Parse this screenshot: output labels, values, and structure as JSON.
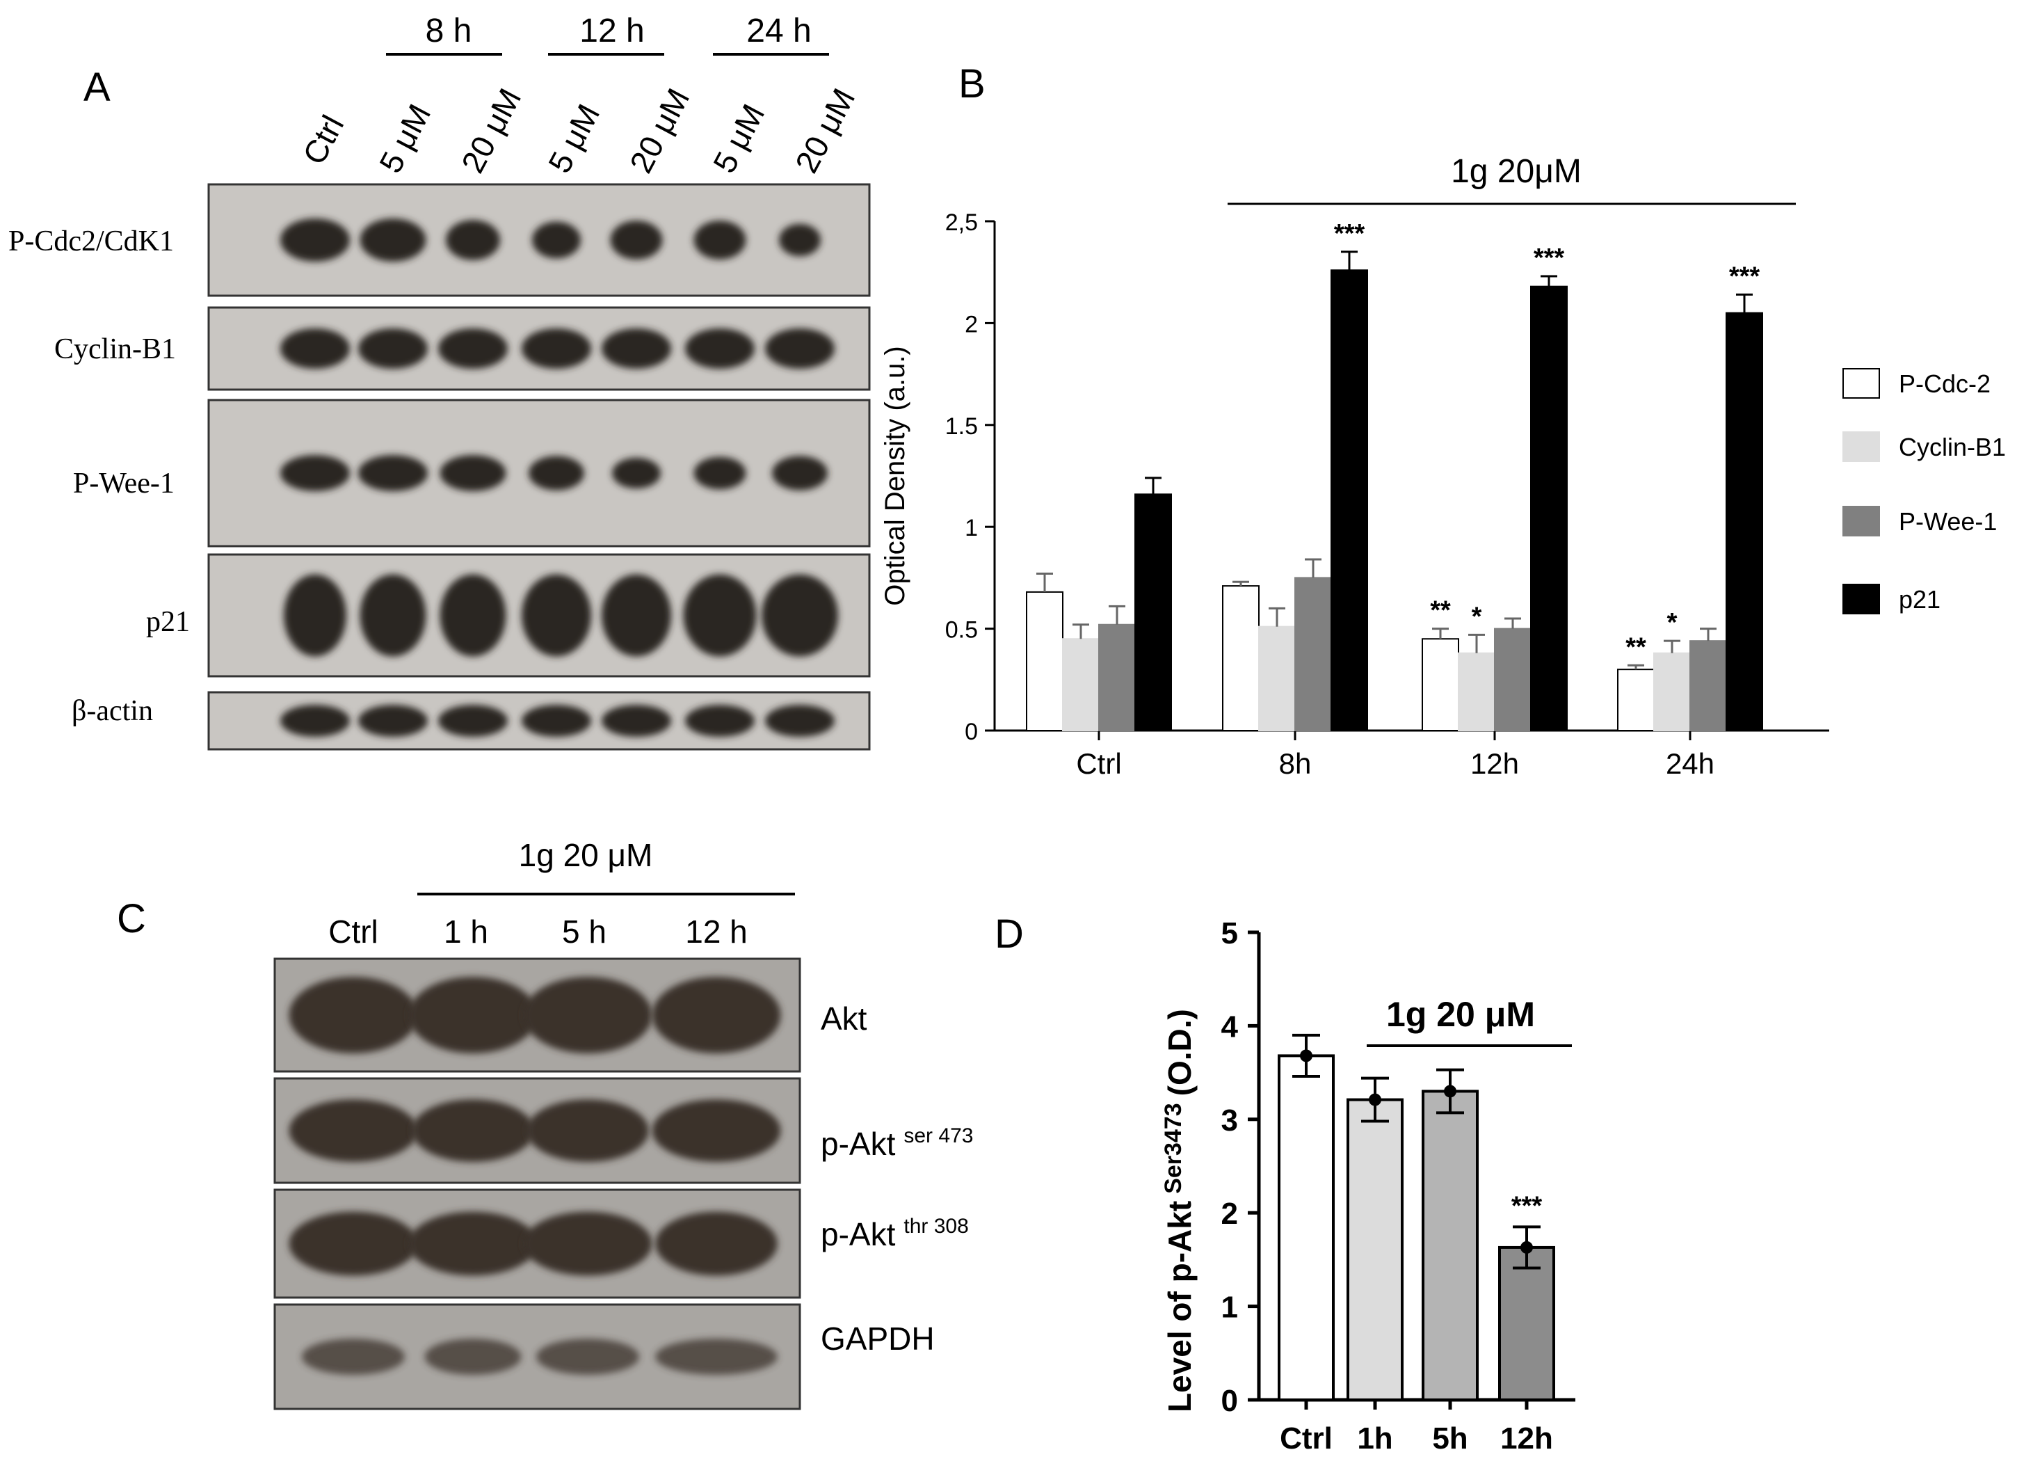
{
  "panels": {
    "A": {
      "letter": "A",
      "time_groups": [
        "8 h",
        "12 h",
        "24 h"
      ],
      "lanes": [
        "Ctrl",
        "5 μM",
        "20 μM",
        "5 μM",
        "20 μM",
        "5 μM",
        "20 μM"
      ],
      "blots": [
        "P-Cdc2/CdK1",
        "Cyclin-B1",
        "P-Wee-1",
        "p21",
        "β-actin"
      ]
    },
    "B": {
      "letter": "B",
      "treatment_label": "1g 20μM"
    },
    "C": {
      "letter": "C",
      "treatment_label": "1g 20 μM",
      "lanes": [
        "Ctrl",
        "1 h",
        "5 h",
        "12 h"
      ],
      "blots": [
        {
          "name": "Akt",
          "sup": ""
        },
        {
          "name": "p-Akt",
          "sup": "ser 473"
        },
        {
          "name": "p-Akt",
          "sup": "thr 308"
        },
        {
          "name": "GAPDH",
          "sup": ""
        }
      ]
    },
    "D": {
      "letter": "D",
      "treatment_label": "1g 20 μM"
    }
  },
  "colors": {
    "pcdc2": "#ffffff",
    "cyclin": "#dedede",
    "pwee": "#808080",
    "p21": "#000000",
    "d_ctrl": "#ffffff",
    "d_1h": "#dcdcdc",
    "d_5h": "#b4b4b4",
    "d_12h": "#8c8c8c",
    "band_dark": "#2a2522",
    "blot_bg_a": "#c9c6c2",
    "blot_bg_c": "#a9a6a2"
  },
  "chart_data": [
    {
      "panel": "B",
      "type": "bar",
      "ylabel": "Optical Density (a.u.)",
      "ylim": [
        0,
        2.5
      ],
      "yticks": [
        "0",
        "0.5",
        "1",
        "1.5",
        "2",
        "2,5"
      ],
      "categories": [
        "Ctrl",
        "8h",
        "12h",
        "24h"
      ],
      "legend_position": "right",
      "series": [
        {
          "name": "P-Cdc-2",
          "values": [
            0.68,
            0.71,
            0.45,
            0.3
          ],
          "errors": [
            0.09,
            0.02,
            0.05,
            0.02
          ],
          "sig": [
            "",
            "",
            "**",
            "**"
          ]
        },
        {
          "name": "Cyclin-B1",
          "values": [
            0.45,
            0.51,
            0.38,
            0.38
          ],
          "errors": [
            0.07,
            0.09,
            0.09,
            0.06
          ],
          "sig": [
            "",
            "",
            "*",
            "*"
          ]
        },
        {
          "name": "P-Wee-1",
          "values": [
            0.52,
            0.75,
            0.5,
            0.44
          ],
          "errors": [
            0.09,
            0.09,
            0.05,
            0.06
          ],
          "sig": [
            "",
            "",
            "",
            ""
          ]
        },
        {
          "name": "p21",
          "values": [
            1.16,
            2.26,
            2.18,
            2.05
          ],
          "errors": [
            0.08,
            0.09,
            0.05,
            0.09
          ],
          "sig": [
            "",
            "***",
            "***",
            "***"
          ]
        }
      ]
    },
    {
      "panel": "D",
      "type": "bar",
      "ylabel_main": "Level of  p-Akt",
      "ylabel_sup": "Ser3473",
      "ylabel_tail": "(O.D.)",
      "ylim": [
        0,
        5
      ],
      "yticks": [
        "0",
        "1",
        "2",
        "3",
        "4",
        "5"
      ],
      "categories": [
        "Ctrl",
        "1h",
        "5h",
        "12h"
      ],
      "values": [
        3.68,
        3.21,
        3.3,
        1.63
      ],
      "errors": [
        0.22,
        0.23,
        0.23,
        0.22
      ],
      "sig": [
        "",
        "",
        "",
        "***"
      ]
    }
  ]
}
